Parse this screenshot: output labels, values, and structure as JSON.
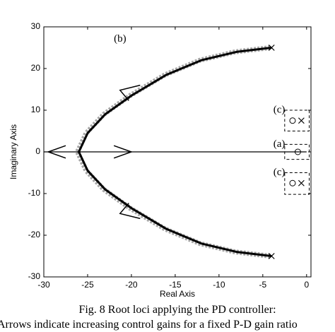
{
  "chart_data": {
    "type": "line",
    "xlabel": "Real Axis",
    "ylabel": "Imaginary Axis",
    "xlim": [
      -30,
      0.5
    ],
    "ylim": [
      -30,
      30
    ],
    "xticks": [
      -30,
      -25,
      -20,
      -15,
      -10,
      -5,
      0
    ],
    "yticks": [
      -30,
      -20,
      -10,
      0,
      10,
      20,
      30
    ],
    "color": "#000000",
    "series": [
      {
        "x": [
          -4,
          -8,
          -12,
          -16,
          -20,
          -23,
          -25,
          -26
        ],
        "values": [
          25,
          24,
          22,
          18.5,
          13.5,
          9,
          4.5,
          0
        ]
      },
      {
        "x": [
          -4,
          -8,
          -12,
          -16,
          -20,
          -23,
          -25,
          -26
        ],
        "values": [
          -25,
          -24,
          -22,
          -18.5,
          -13.5,
          -9,
          -4.5,
          0
        ]
      },
      {
        "x": [
          -30,
          0
        ],
        "values": [
          0,
          0
        ]
      }
    ],
    "poles": {
      "x": [
        -4,
        -4,
        -0.6,
        -0.6
      ],
      "values": [
        25,
        -25,
        7.5,
        -7.5
      ]
    },
    "zeros": {
      "x": [
        -1,
        -1.6,
        -1.6
      ],
      "values": [
        0,
        7.5,
        -7.5
      ]
    },
    "annotations": [
      "(b)",
      "(c)",
      "(a)",
      "(c)"
    ]
  },
  "caption": [
    "Fig. 8 Root loci applying the PD controller:",
    "Arrows indicate increasing control gains for a fixed P-D gain ratio"
  ]
}
